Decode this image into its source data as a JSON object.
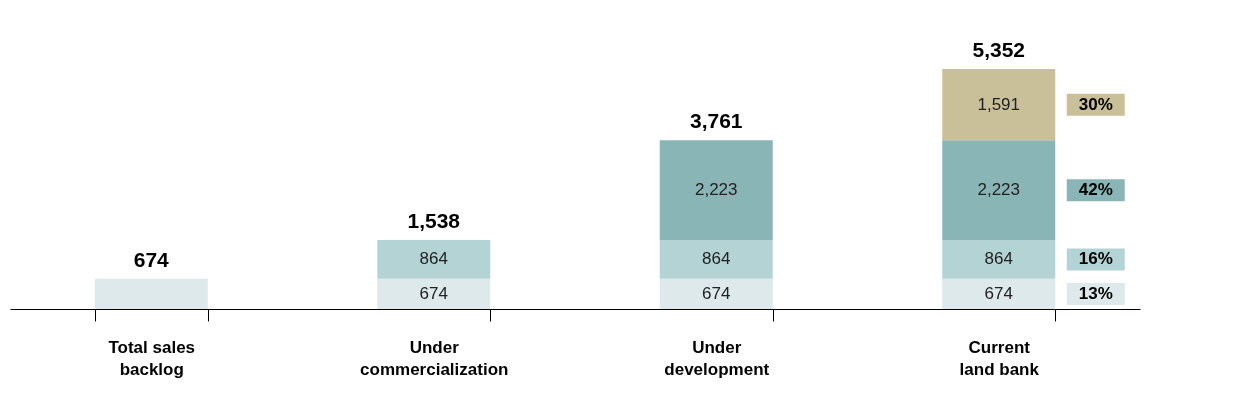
{
  "chart_data": {
    "type": "bar",
    "stacked": true,
    "categories": [
      "Total sales backlog",
      "Under commercialization",
      "Under development",
      "Current land bank"
    ],
    "series": [
      {
        "color": "#dde9ea",
        "values": [
          674,
          674,
          674,
          674
        ],
        "value_labels": [
          null,
          "674",
          "674",
          "674"
        ]
      },
      {
        "color": "#b3d3d4",
        "values": [
          null,
          864,
          864,
          864
        ],
        "value_labels": [
          null,
          "864",
          "864",
          "864"
        ]
      },
      {
        "color": "#8ab5b6",
        "values": [
          null,
          null,
          2223,
          2223
        ],
        "value_labels": [
          null,
          null,
          "2,223",
          "2,223"
        ]
      },
      {
        "color": "#c9bf98",
        "values": [
          null,
          null,
          null,
          1591
        ],
        "value_labels": [
          null,
          null,
          null,
          "1,591"
        ]
      }
    ],
    "totals": [
      "674",
      "1,538",
      "3,761",
      "5,352"
    ],
    "annotations": [
      "13%",
      "16%",
      "42%",
      "30%"
    ],
    "grid": false,
    "legend": false
  }
}
